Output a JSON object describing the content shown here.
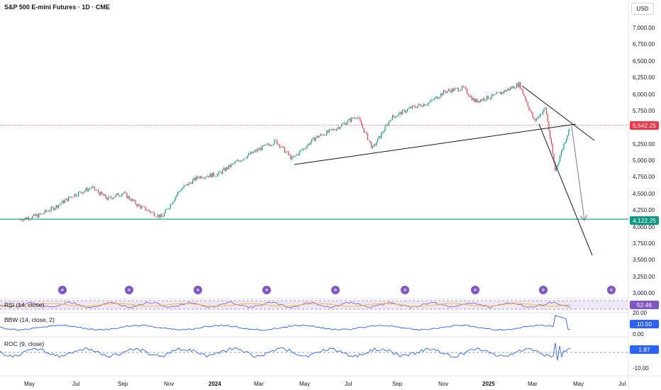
{
  "header": {
    "title": "S&P 500 E-mini Futures · 1D · CME",
    "currency_button": "USD"
  },
  "price_axis": {
    "ticks": [
      "7,000.00",
      "6,750.00",
      "6,500.00",
      "6,250.00",
      "6,000.00",
      "5,750.00",
      "5,250.00",
      "5,000.00",
      "4,750.00",
      "4,500.00",
      "4,250.00",
      "4,000.00",
      "3,750.00",
      "3,500.00",
      "3,250.00",
      "3,000.00"
    ],
    "current_price_label": "5,542.25",
    "support_label": "4,122.25",
    "current_price_color": "#f23645",
    "support_color": "#089981"
  },
  "time_axis": {
    "labels": [
      "May",
      "Jul",
      "Sep",
      "Nov",
      "2024",
      "Mar",
      "May",
      "Jul",
      "Sep",
      "Nov",
      "2025",
      "Mar",
      "May",
      "Jul"
    ]
  },
  "panes": {
    "rsi": {
      "label": "RSI (14, close)",
      "value": "52.46"
    },
    "bbw": {
      "label": "BBW (14, close, 2)",
      "value": "10.50",
      "tick_top": "20.00",
      "tick_bottom": "0.00"
    },
    "roc": {
      "label": "ROC (9, close)",
      "value": "1.87",
      "tick_bottom": "-10.00"
    }
  },
  "events": {
    "icon": "fast-forward-circle-icon",
    "glyph": "»",
    "count": 9
  },
  "chart_data": {
    "type": "candlestick-line",
    "price_path": [
      [
        "2023-04-20",
        4120
      ],
      [
        "2023-05-15",
        4180
      ],
      [
        "2023-06-05",
        4300
      ],
      [
        "2023-06-30",
        4480
      ],
      [
        "2023-07-25",
        4600
      ],
      [
        "2023-08-15",
        4430
      ],
      [
        "2023-09-05",
        4520
      ],
      [
        "2023-09-25",
        4330
      ],
      [
        "2023-10-27",
        4150
      ],
      [
        "2023-11-20",
        4560
      ],
      [
        "2023-12-15",
        4760
      ],
      [
        "2024-01-10",
        4800
      ],
      [
        "2024-02-05",
        4990
      ],
      [
        "2024-03-01",
        5150
      ],
      [
        "2024-03-28",
        5300
      ],
      [
        "2024-04-19",
        5030
      ],
      [
        "2024-05-20",
        5350
      ],
      [
        "2024-06-15",
        5480
      ],
      [
        "2024-07-15",
        5680
      ],
      [
        "2024-08-05",
        5190
      ],
      [
        "2024-08-30",
        5650
      ],
      [
        "2024-09-25",
        5800
      ],
      [
        "2024-10-20",
        5880
      ],
      [
        "2024-11-10",
        6050
      ],
      [
        "2024-12-05",
        6100
      ],
      [
        "2024-12-20",
        5900
      ],
      [
        "2025-01-15",
        5980
      ],
      [
        "2025-02-18",
        6160
      ],
      [
        "2025-03-10",
        5600
      ],
      [
        "2025-03-25",
        5800
      ],
      [
        "2025-04-07",
        4850
      ],
      [
        "2025-04-20",
        5300
      ],
      [
        "2025-04-28",
        5542
      ]
    ],
    "current_price": 5542.25,
    "support_level": 4122.25,
    "ylim": [
      3000,
      7100
    ]
  }
}
